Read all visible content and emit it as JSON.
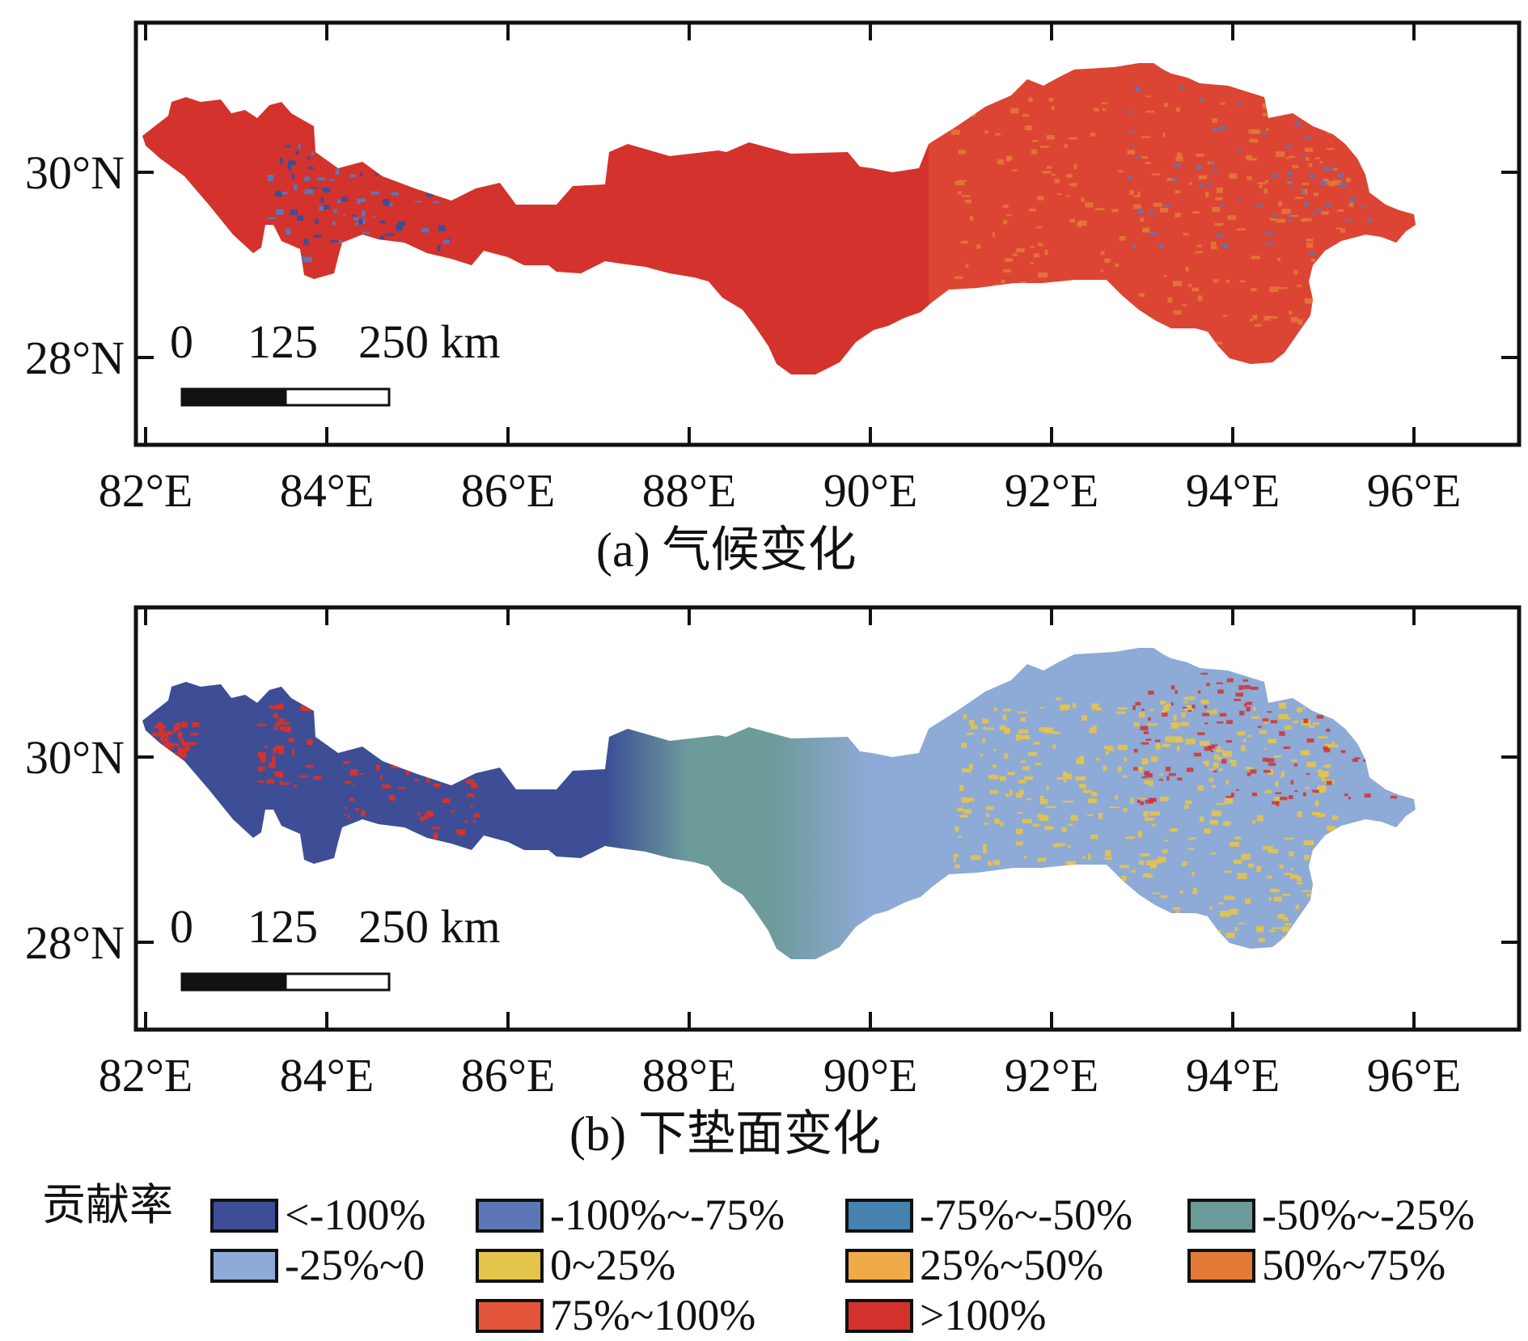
{
  "colors": {
    "lt_neg100": "#3d4e97",
    "n100_n75": "#5b77b7",
    "n75_n50": "#4682b0",
    "n50_n25": "#6d9b9a",
    "n25_0": "#8eaad7",
    "p0_25": "#e4c44a",
    "p25_50": "#f0aa48",
    "p50_75": "#e47a37",
    "p75_100": "#e2553a",
    "gt_100": "#d4322c"
  },
  "panels": [
    {
      "caption": "(a) 气候变化",
      "x_ticks": [
        "82°E",
        "84°E",
        "86°E",
        "88°E",
        "90°E",
        "92°E",
        "94°E",
        "96°E"
      ],
      "y_ticks": [
        "30°N",
        "28°N"
      ],
      "scale_bar": {
        "labels": [
          "0",
          "125",
          "250 km"
        ]
      },
      "dominant_class": "gt_100",
      "secondary_classes": [
        "p75_100",
        "p50_75"
      ],
      "patch_classes": [
        "lt_neg100",
        "n100_n75"
      ]
    },
    {
      "caption": "(b) 下垫面变化",
      "x_ticks": [
        "82°E",
        "84°E",
        "86°E",
        "88°E",
        "90°E",
        "92°E",
        "94°E",
        "96°E"
      ],
      "y_ticks": [
        "30°N",
        "28°N"
      ],
      "scale_bar": {
        "labels": [
          "0",
          "125",
          "250 km"
        ]
      },
      "west_class": "lt_neg100",
      "middle_class": "n50_n25",
      "east_class": "n25_0",
      "patch_classes": [
        "p0_25",
        "gt_100"
      ]
    }
  ],
  "legend": {
    "title": "贡献率",
    "items": [
      {
        "key": "lt_neg100",
        "label": "<-100%"
      },
      {
        "key": "n100_n75",
        "label": "-100%~-75%"
      },
      {
        "key": "n75_n50",
        "label": "-75%~-50%"
      },
      {
        "key": "n50_n25",
        "label": "-50%~-25%"
      },
      {
        "key": "n25_0",
        "label": "-25%~0"
      },
      {
        "key": "p0_25",
        "label": "0~25%"
      },
      {
        "key": "p25_50",
        "label": "25%~50%"
      },
      {
        "key": "p50_75",
        "label": "50%~75%"
      },
      {
        "key": "p75_100",
        "label": "75%~100%"
      },
      {
        "key": "gt_100",
        "label": ">100%"
      }
    ]
  }
}
